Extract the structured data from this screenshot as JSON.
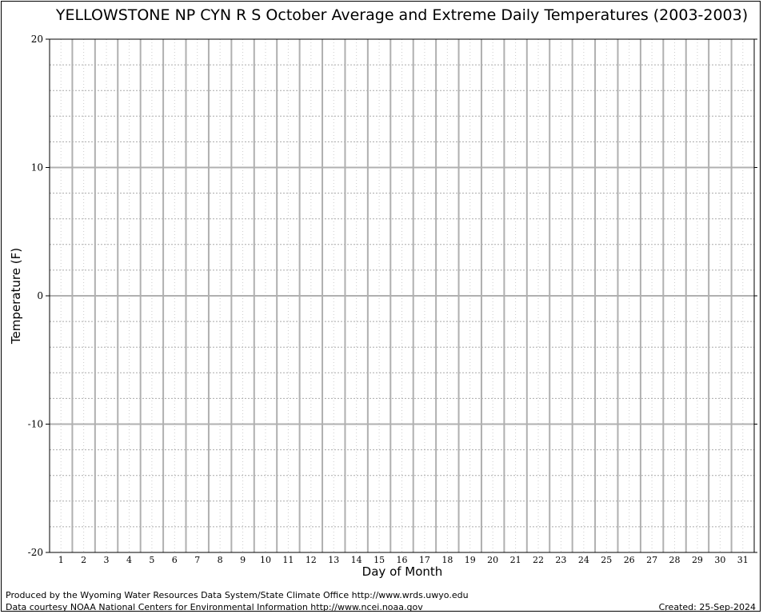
{
  "chart_data": {
    "type": "line",
    "title": "YELLOWSTONE NP CYN R S October Average and Extreme Daily Temperatures (2003-2003)",
    "xlabel": "Day of Month",
    "ylabel": "Temperature (F)",
    "xlim": [
      0.5,
      31.5
    ],
    "ylim": [
      -20,
      20
    ],
    "y_ticks": [
      20,
      10,
      0,
      -10,
      -20
    ],
    "x_ticks": [
      1,
      2,
      3,
      4,
      5,
      6,
      7,
      8,
      9,
      10,
      11,
      12,
      13,
      14,
      15,
      16,
      17,
      18,
      19,
      20,
      21,
      22,
      23,
      24,
      25,
      26,
      27,
      28,
      29,
      30,
      31
    ],
    "grid": true,
    "series": []
  },
  "footer": {
    "produced_by": "Produced by the Wyoming Water Resources Data System/State Climate Office http://www.wrds.uwyo.edu",
    "data_courtesy": "Data courtesy NOAA National Centers for Environmental Information http://www.ncei.noaa.gov",
    "created": "Created:  25-Sep-2024"
  }
}
